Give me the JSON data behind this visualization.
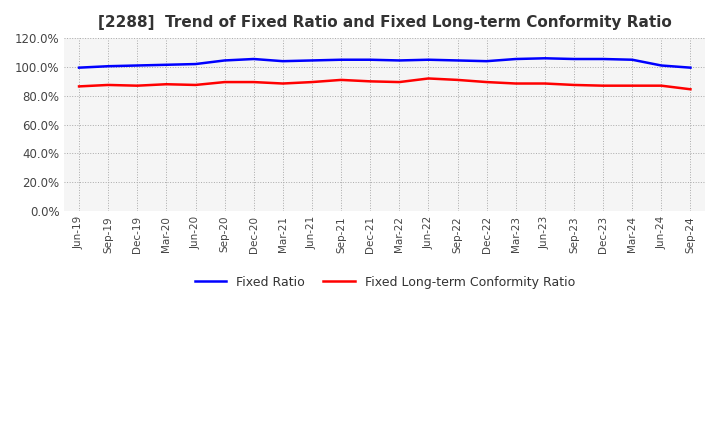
{
  "title": "[2288]  Trend of Fixed Ratio and Fixed Long-term Conformity Ratio",
  "x_labels": [
    "Jun-19",
    "Sep-19",
    "Dec-19",
    "Mar-20",
    "Jun-20",
    "Sep-20",
    "Dec-20",
    "Mar-21",
    "Jun-21",
    "Sep-21",
    "Dec-21",
    "Mar-22",
    "Jun-22",
    "Sep-22",
    "Dec-22",
    "Mar-23",
    "Jun-23",
    "Sep-23",
    "Dec-23",
    "Mar-24",
    "Jun-24",
    "Sep-24"
  ],
  "fixed_ratio": [
    99.5,
    100.5,
    101.0,
    101.5,
    102.0,
    104.5,
    105.5,
    104.0,
    104.5,
    105.0,
    105.0,
    104.5,
    105.0,
    104.5,
    104.0,
    105.5,
    106.0,
    105.5,
    105.5,
    105.0,
    101.0,
    99.5
  ],
  "fixed_lt_ratio": [
    86.5,
    87.5,
    87.0,
    88.0,
    87.5,
    89.5,
    89.5,
    88.5,
    89.5,
    91.0,
    90.0,
    89.5,
    92.0,
    91.0,
    89.5,
    88.5,
    88.5,
    87.5,
    87.0,
    87.0,
    87.0,
    84.5
  ],
  "fixed_ratio_color": "#0000ff",
  "fixed_lt_ratio_color": "#ff0000",
  "ylim": [
    0,
    120
  ],
  "yticks": [
    0,
    20,
    40,
    60,
    80,
    100,
    120
  ],
  "background_color": "#ffffff",
  "plot_bg_color": "#f5f5f5",
  "grid_color": "#aaaaaa",
  "legend_labels": [
    "Fixed Ratio",
    "Fixed Long-term Conformity Ratio"
  ]
}
